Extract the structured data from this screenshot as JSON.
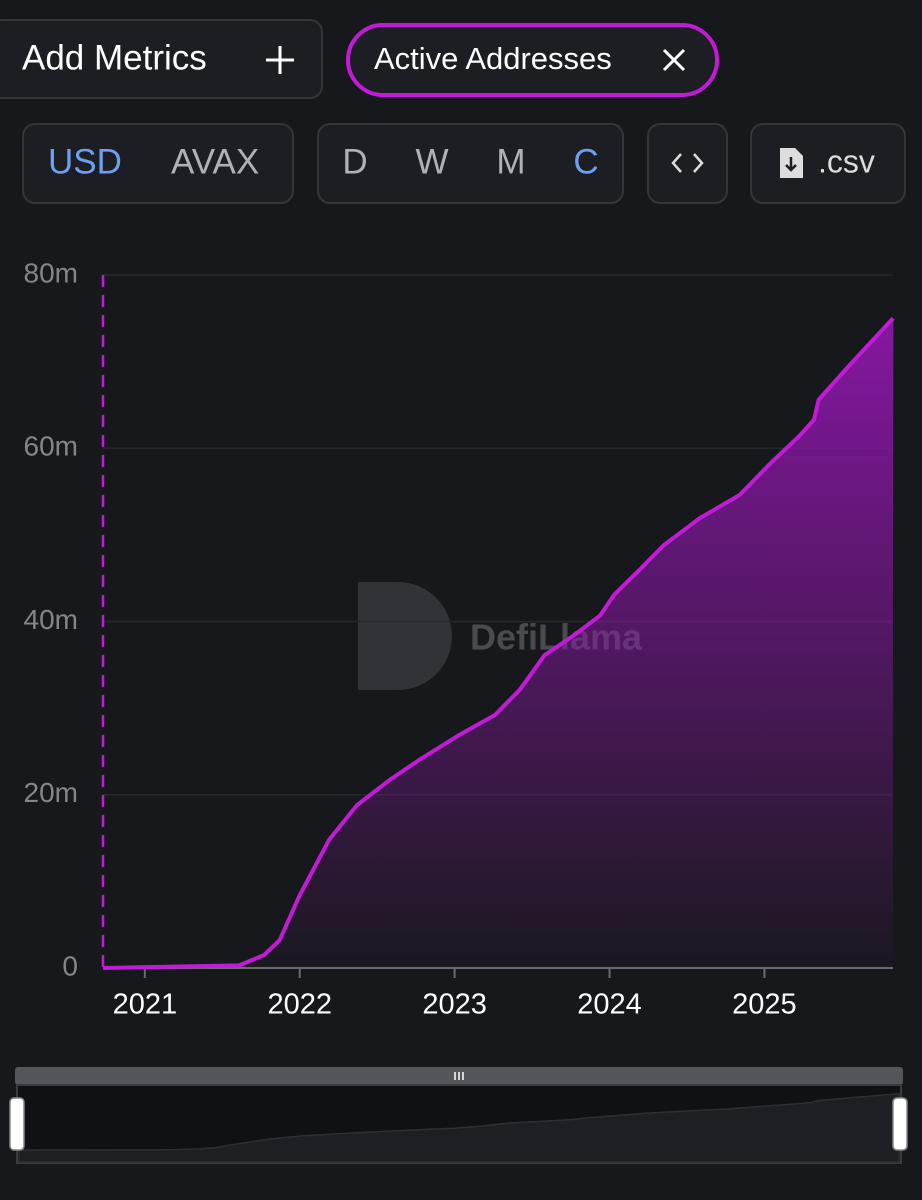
{
  "toolbar": {
    "add_metrics": "Add Metrics",
    "active_metric": "Active Addresses",
    "currency": [
      "USD",
      "AVAX"
    ],
    "periods": [
      "D",
      "W",
      "M",
      "C"
    ],
    "csv": ".csv"
  },
  "watermark": "DefiLlama",
  "chart_data": {
    "type": "area",
    "color": "#c21bd8",
    "x": [
      2020.73,
      2021.61,
      2021.77,
      2021.87,
      2022.0,
      2022.19,
      2022.37,
      2022.58,
      2022.77,
      2023.03,
      2023.26,
      2023.42,
      2023.58,
      2023.77,
      2023.94,
      2024.03,
      2024.19,
      2024.35,
      2024.58,
      2024.84,
      2025.03,
      2025.23,
      2025.32,
      2025.35,
      2025.55,
      2025.83
    ],
    "values": [
      0,
      0.3,
      1.5,
      3.2,
      8.4,
      14.8,
      18.8,
      21.7,
      24,
      26.9,
      29.2,
      32.1,
      36.1,
      38.4,
      40.7,
      43.1,
      45.9,
      48.8,
      51.9,
      54.6,
      58.1,
      61.5,
      63.3,
      65.6,
      69.6,
      75.0
    ],
    "xlim": [
      2020.73,
      2025.83
    ],
    "xticks": [
      2021,
      2022,
      2023,
      2024,
      2025
    ],
    "ylim": [
      0,
      80
    ],
    "yticks": [
      0,
      {
        "value": 20,
        "label": "20m"
      },
      {
        "value": 40,
        "label": "40m"
      },
      {
        "value": 60,
        "label": "60m"
      },
      {
        "value": 80,
        "label": "80m"
      }
    ],
    "grid": true
  }
}
